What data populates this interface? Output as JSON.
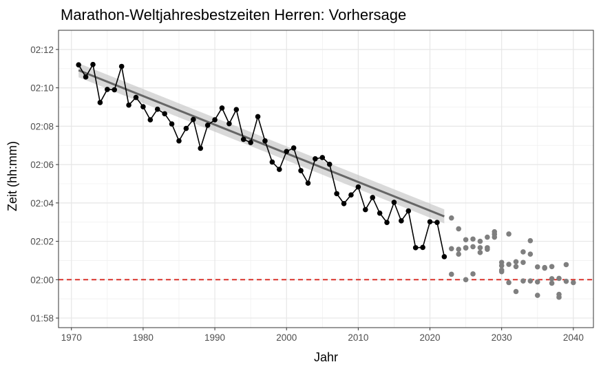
{
  "chart_data": {
    "type": "scatter",
    "title": "Marathon-Weltjahresbestzeiten Herren: Vorhersage",
    "xlabel": "Jahr",
    "ylabel": "Zeit (hh:mm)",
    "xlim": [
      1968.2,
      2042.8
    ],
    "ylim_seconds": [
      7050,
      7980
    ],
    "x_ticks": [
      1970,
      1980,
      1990,
      2000,
      2010,
      2020,
      2030,
      2040
    ],
    "y_ticks": [
      {
        "value": 7080,
        "label": "01:58"
      },
      {
        "value": 7200,
        "label": "02:00"
      },
      {
        "value": 7320,
        "label": "02:02"
      },
      {
        "value": 7440,
        "label": "02:04"
      },
      {
        "value": 7560,
        "label": "02:06"
      },
      {
        "value": 7680,
        "label": "02:08"
      },
      {
        "value": 7800,
        "label": "02:10"
      },
      {
        "value": 7920,
        "label": "02:12"
      }
    ],
    "grid": true,
    "reference_line": {
      "y": 7200,
      "color": "#d7261e",
      "style": "dashed"
    },
    "trend": {
      "x": [
        1971,
        2022
      ],
      "y": [
        7855,
        7398
      ],
      "band_halfwidth": 22,
      "color": "#666666",
      "band_color": "#bfbfbf"
    },
    "series": [
      {
        "kind": "observed",
        "color": "#000000",
        "x": [
          1971,
          1972,
          1973,
          1974,
          1975,
          1976,
          1977,
          1978,
          1979,
          1980,
          1981,
          1982,
          1983,
          1984,
          1985,
          1986,
          1987,
          1988,
          1989,
          1990,
          1991,
          1992,
          1993,
          1994,
          1995,
          1996,
          1997,
          1998,
          1999,
          2000,
          2001,
          2002,
          2003,
          2004,
          2005,
          2006,
          2007,
          2008,
          2009,
          2010,
          2011,
          2012,
          2013,
          2014,
          2015,
          2016,
          2017,
          2018,
          2019,
          2020,
          2021,
          2022
        ],
        "y": [
          7872,
          7834,
          7873,
          7754,
          7795,
          7794,
          7867,
          7746,
          7770,
          7741,
          7700,
          7733,
          7719,
          7687,
          7634,
          7673,
          7701,
          7611,
          7683,
          7700,
          7737,
          7688,
          7732,
          7639,
          7629,
          7710,
          7634,
          7568,
          7545,
          7601,
          7612,
          7541,
          7502,
          7578,
          7582,
          7561,
          7469,
          7438,
          7465,
          7490,
          7419,
          7457,
          7408,
          7379,
          7442,
          7384,
          7415,
          7300,
          7301,
          7381,
          7379,
          7272
        ]
      },
      {
        "kind": "forecast",
        "color": "#7f7f7f",
        "x": [
          2023,
          2023,
          2023,
          2024,
          2024,
          2024,
          2025,
          2025,
          2025,
          2025,
          2026,
          2026,
          2026,
          2027,
          2027,
          2027,
          2028,
          2028,
          2028,
          2029,
          2029,
          2029,
          2030,
          2030,
          2030,
          2030,
          2031,
          2031,
          2031,
          2032,
          2032,
          2032,
          2033,
          2033,
          2033,
          2034,
          2034,
          2034,
          2035,
          2035,
          2035,
          2036,
          2036,
          2037,
          2037,
          2037,
          2038,
          2038,
          2038,
          2039,
          2039,
          2040
        ],
        "y": [
          7393,
          7297,
          7217,
          7359,
          7295,
          7280,
          7325,
          7300,
          7200,
          7299,
          7327,
          7303,
          7218,
          7320,
          7285,
          7300,
          7333,
          7300,
          7295,
          7350,
          7342,
          7333,
          7254,
          7244,
          7230,
          7225,
          7343,
          7248,
          7191,
          7256,
          7241,
          7163,
          7254,
          7287,
          7196,
          7322,
          7280,
          7196,
          7240,
          7193,
          7151,
          7238,
          7236,
          7241,
          7203,
          7189,
          7204,
          7154,
          7145,
          7247,
          7195,
          7191
        ]
      }
    ]
  }
}
